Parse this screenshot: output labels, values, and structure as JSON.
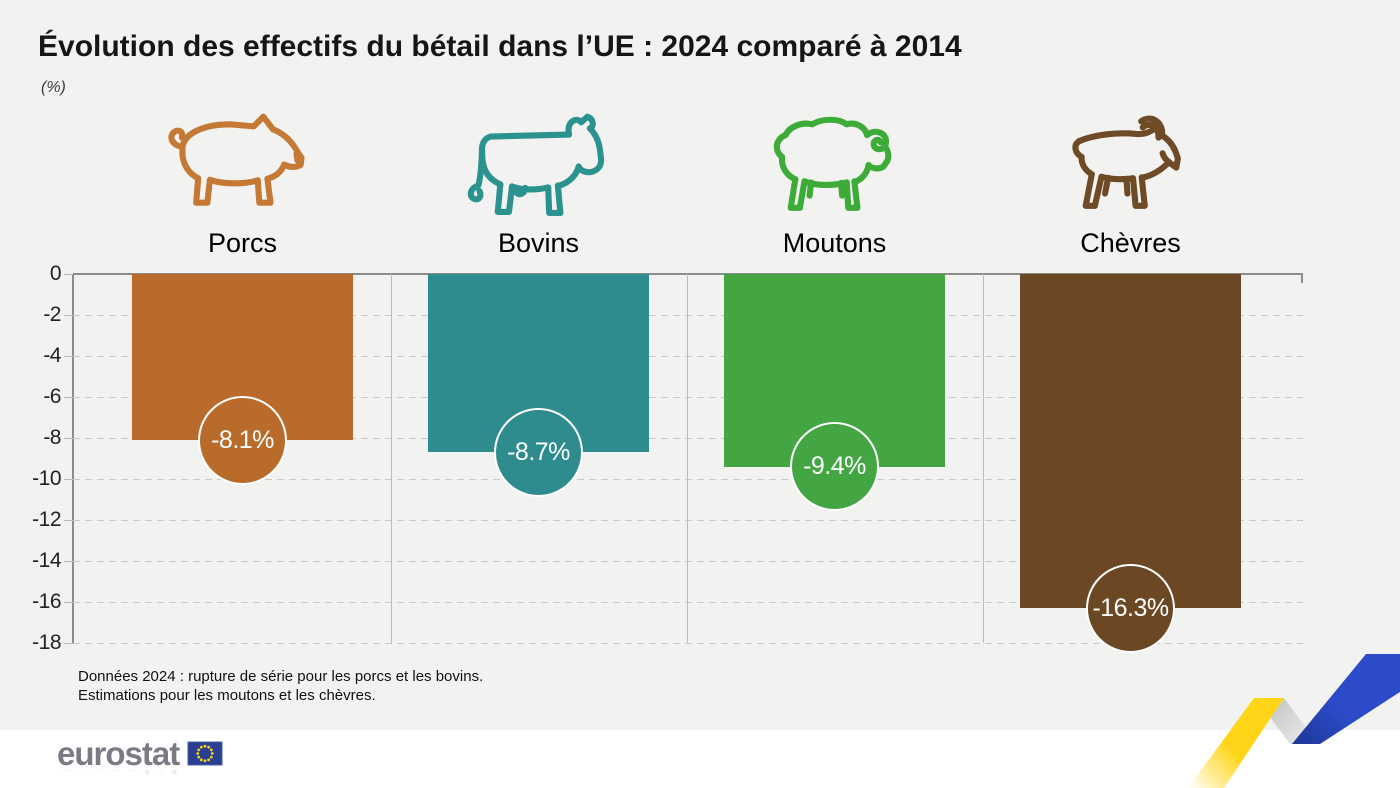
{
  "title": "Évolution des effectifs du bétail dans l’UE : 2024 comparé à 2014",
  "subtitle": "(%)",
  "chart_data": {
    "type": "bar",
    "title": "Évolution des effectifs du bétail dans l’UE : 2024 comparé à 2014",
    "unit": "%",
    "categories": [
      "Porcs",
      "Bovins",
      "Moutons",
      "Chèvres"
    ],
    "slugs": [
      "porcs",
      "bovins",
      "moutons",
      "chevres"
    ],
    "values": [
      -8.1,
      -8.7,
      -9.4,
      -16.3
    ],
    "value_labels": [
      "-8.1%",
      "-8.7%",
      "-9.4%",
      "-16.3%"
    ],
    "bar_colors": [
      "#b96b2c",
      "#2e8c8e",
      "#43a643",
      "#6b4724"
    ],
    "icon_colors": [
      "#c47a35",
      "#2b928f",
      "#3dab38",
      "#6e4a26"
    ],
    "icons": [
      "pig-icon",
      "cow-icon",
      "sheep-icon",
      "goat-icon"
    ],
    "ylim": [
      -18,
      0
    ],
    "yticks": [
      0,
      -2,
      -4,
      -6,
      -8,
      -10,
      -12,
      -14,
      -16,
      -18
    ],
    "grid": "horizontal-dashed",
    "legend": "none"
  },
  "footnote": {
    "line1": "Données 2024 : rupture de série pour les porcs et les bovins.",
    "line2": "Estimations pour les moutons et les chèvres."
  },
  "footer": {
    "logo_text": "eurostat"
  },
  "colors": {
    "background": "#f2f2f0",
    "footer_background": "#ffffff",
    "axis": "#8c8c8c",
    "grid": "#c9c9c9",
    "separator": "#bdbdbd",
    "ribbon_yellow": "#ffd617",
    "ribbon_blue": "#2b4bc8",
    "logo_gray": "#7b7b83",
    "flag_blue": "#2a3f8f",
    "flag_stars": "#f7d117"
  }
}
